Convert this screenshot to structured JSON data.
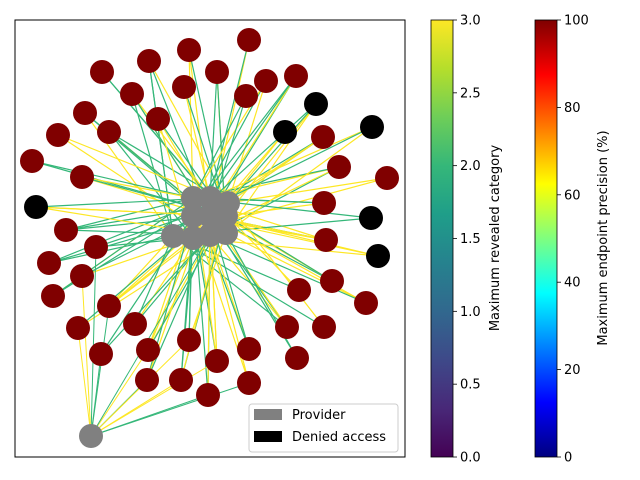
{
  "chart_data": {
    "type": "network",
    "legend": {
      "placement": "lower-right",
      "entries": [
        {
          "label": "Provider",
          "color": "#808080"
        },
        {
          "label": "Denied access",
          "color": "#000000"
        }
      ]
    },
    "node_colors": {
      "revealed": "#800000",
      "provider": "#808080",
      "denied": "#000000"
    },
    "colorbars": [
      {
        "label": "Maximum revealed category",
        "colormap": "viridis",
        "range": [
          0.0,
          3.0
        ],
        "ticks": [
          "0.0",
          "0.5",
          "1.0",
          "1.5",
          "2.0",
          "2.5",
          "3.0"
        ],
        "stops": [
          "#440154",
          "#482878",
          "#3e4989",
          "#31688e",
          "#26828e",
          "#1f9e89",
          "#35b779",
          "#6ece58",
          "#b5de2b",
          "#fde725"
        ]
      },
      {
        "label": "Maximum endpoint precision (%)",
        "colormap": "jet",
        "range": [
          0,
          100
        ],
        "ticks": [
          "0",
          "20",
          "40",
          "60",
          "80",
          "100"
        ],
        "stops": [
          "#00007f",
          "#0000ff",
          "#007fff",
          "#00ffff",
          "#7fff7f",
          "#ffff00",
          "#ff7f00",
          "#ff0000",
          "#7f0000"
        ]
      }
    ],
    "edge_colors": {
      "category_2": "#35b779",
      "category_3": "#fde725"
    },
    "edge_values": [
      2.0,
      3.0
    ]
  }
}
